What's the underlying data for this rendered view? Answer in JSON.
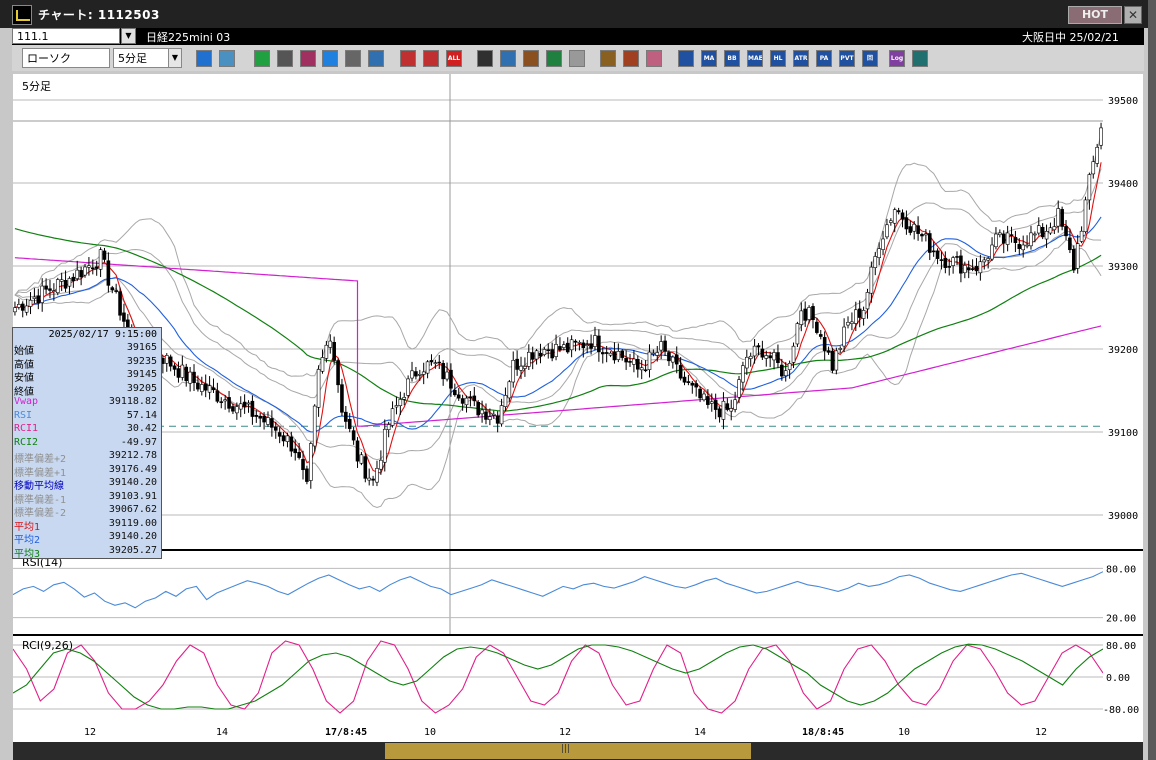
{
  "window": {
    "title": "チャート: 1112503",
    "hot_label": "HOT",
    "close_label": "✕"
  },
  "topbar": {
    "code": "111.1",
    "symbol": "日経225mini 03",
    "session_date": "大阪日中  25/02/21"
  },
  "toolbar": {
    "chart_type": "ローソク",
    "interval": "5分足",
    "icons": [
      "zoom-icon",
      "window-icon",
      "pen-icon",
      "line-icon",
      "cursor-icon",
      "arrow-icon",
      "page-icon",
      "trash-icon",
      "bar-left-icon",
      "bar-right-icon",
      "all-icon",
      "cross-icon",
      "search-icon",
      "dist-icon",
      "grid-icon",
      "blank-icon",
      "gear-icon",
      "tools-icon",
      "palette-icon",
      "ichimoku-icon",
      "ma-icon",
      "bb-icon",
      "mae-icon",
      "hl-icon",
      "atr-icon",
      "para-icon",
      "pvt-icon",
      "box-icon",
      "log-icon",
      "fit-icon"
    ],
    "icon_labels": {
      "all-icon": "ALL",
      "ma-icon": "MA",
      "bb-icon": "BB",
      "mae-icon": "MAE",
      "hl-icon": "HL",
      "atr-icon": "ATR",
      "para-icon": "PA",
      "pvt-icon": "PVT",
      "box-icon": "回",
      "log-icon": "Log"
    }
  },
  "colors": {
    "vwap": "#d020d0",
    "ma1": "#e01010",
    "ma2": "#2060e0",
    "ma3": "#108010",
    "band": "#a8a8a8",
    "rsi": "#4a8ad8",
    "rci1": "#e0208a",
    "rci2": "#108010",
    "info_bg": "#c8d8f0",
    "up": "#ffffff",
    "down": "#000000"
  },
  "main_panel": {
    "label": "5分足"
  },
  "rsi_panel": {
    "label": "RSI(14)"
  },
  "rci_panel": {
    "label": "RCI(9,26)"
  },
  "info": {
    "datetime": "2025/02/17 9:15:00",
    "rows": [
      {
        "label": "始値",
        "value": "39165",
        "color": "#000000"
      },
      {
        "label": "高値",
        "value": "39235",
        "color": "#000000"
      },
      {
        "label": "安値",
        "value": "39145",
        "color": "#000000"
      },
      {
        "label": "終値",
        "value": "39205",
        "color": "#000000"
      },
      {
        "label": "Vwap",
        "value": "39118.82",
        "color": "#d020d0"
      },
      {
        "label": "RSI",
        "value": "57.14",
        "color": "#4a8ad8"
      },
      {
        "label": "RCI1",
        "value": "30.42",
        "color": "#e0208a"
      },
      {
        "label": "RCI2",
        "value": "-49.97",
        "color": "#108010"
      },
      {
        "label": "標準偏差+2",
        "value": "39212.78",
        "color": "#909090"
      },
      {
        "label": "標準偏差+1",
        "value": "39176.49",
        "color": "#909090"
      },
      {
        "label": "移動平均線",
        "value": "39140.20",
        "color": "#0000c0"
      },
      {
        "label": "標準偏差-1",
        "value": "39103.91",
        "color": "#909090"
      },
      {
        "label": "標準偏差-2",
        "value": "39067.62",
        "color": "#909090"
      },
      {
        "label": "平均1",
        "value": "39119.00",
        "color": "#e01010"
      },
      {
        "label": "平均2",
        "value": "39140.20",
        "color": "#2060e0"
      },
      {
        "label": "平均3",
        "value": "39205.27",
        "color": "#108010"
      }
    ]
  },
  "chart_data": {
    "type": "candlestick",
    "interval": "5分足",
    "price_ticks": [
      "39500",
      "39400",
      "39300",
      "39200",
      "39100",
      "39000"
    ],
    "price_range": [
      38970,
      39510
    ],
    "hline_dashed": 39107,
    "rsi_ticks": [
      "80.00",
      "20.00"
    ],
    "rsi_range": [
      0,
      100
    ],
    "rci_ticks": [
      "80.00",
      "0.00",
      "-80.00"
    ],
    "rci_range": [
      -100,
      100
    ],
    "x_labels": [
      "12",
      "14",
      "17/8:45",
      "10",
      "12",
      "14",
      "18/8:45",
      "10",
      "12"
    ],
    "price_anchors": [
      [
        0,
        39250
      ],
      [
        8,
        39270
      ],
      [
        14,
        39285
      ],
      [
        22,
        39310
      ],
      [
        30,
        39210
      ],
      [
        38,
        39190
      ],
      [
        46,
        39160
      ],
      [
        54,
        39140
      ],
      [
        62,
        39120
      ],
      [
        68,
        39100
      ],
      [
        72,
        39080
      ],
      [
        75,
        39030
      ],
      [
        78,
        39170
      ],
      [
        81,
        39220
      ],
      [
        84,
        39130
      ],
      [
        88,
        39070
      ],
      [
        92,
        39040
      ],
      [
        96,
        39110
      ],
      [
        100,
        39150
      ],
      [
        104,
        39180
      ],
      [
        108,
        39180
      ],
      [
        112,
        39160
      ],
      [
        118,
        39130
      ],
      [
        124,
        39120
      ],
      [
        128,
        39180
      ],
      [
        134,
        39200
      ],
      [
        142,
        39200
      ],
      [
        148,
        39210
      ],
      [
        155,
        39195
      ],
      [
        160,
        39175
      ],
      [
        166,
        39200
      ],
      [
        172,
        39160
      ],
      [
        178,
        39130
      ],
      [
        184,
        39125
      ],
      [
        188,
        39190
      ],
      [
        192,
        39200
      ],
      [
        198,
        39170
      ],
      [
        202,
        39250
      ],
      [
        206,
        39230
      ],
      [
        210,
        39180
      ],
      [
        214,
        39230
      ],
      [
        218,
        39250
      ],
      [
        222,
        39330
      ],
      [
        226,
        39370
      ],
      [
        232,
        39340
      ],
      [
        238,
        39310
      ],
      [
        244,
        39300
      ],
      [
        248,
        39300
      ],
      [
        252,
        39330
      ],
      [
        258,
        39330
      ],
      [
        264,
        39340
      ],
      [
        268,
        39360
      ],
      [
        272,
        39300
      ],
      [
        276,
        39400
      ],
      [
        279,
        39470
      ]
    ],
    "rsi_values": [
      48,
      55,
      58,
      52,
      60,
      63,
      55,
      45,
      50,
      40,
      35,
      38,
      32,
      40,
      44,
      52,
      46,
      55,
      58,
      42,
      50,
      55,
      60,
      65,
      62,
      58,
      52,
      48,
      55,
      62,
      68,
      72,
      66,
      60,
      55,
      58,
      52,
      60,
      66,
      70,
      64,
      58,
      55,
      48,
      52,
      56,
      60,
      66,
      62,
      58,
      54,
      50,
      46,
      52,
      58,
      55,
      60,
      62,
      58,
      56,
      60,
      64,
      70,
      66,
      62,
      58,
      56,
      60,
      65,
      68,
      62,
      58,
      54,
      50,
      52,
      56,
      60,
      64,
      60,
      58,
      55,
      52,
      56,
      62,
      58,
      60,
      64,
      70,
      72,
      68,
      62,
      58,
      54,
      52,
      56,
      60,
      64,
      68,
      72,
      74,
      70,
      66,
      62,
      58,
      62,
      66,
      70,
      76
    ],
    "rci1_values": [
      70,
      20,
      -60,
      -30,
      60,
      80,
      40,
      -40,
      -80,
      -80,
      -60,
      -20,
      40,
      80,
      60,
      -20,
      -70,
      -80,
      -40,
      60,
      90,
      80,
      20,
      -60,
      -90,
      -60,
      40,
      90,
      80,
      20,
      -60,
      -90,
      -70,
      -30,
      50,
      80,
      60,
      0,
      -60,
      -70,
      -40,
      40,
      80,
      60,
      -20,
      -70,
      -60,
      20,
      80,
      60,
      -40,
      -80,
      -90,
      -60,
      20,
      70,
      80,
      40,
      -40,
      -80,
      -60,
      20,
      70,
      80,
      40,
      -20,
      -60,
      -70,
      -30,
      40,
      80,
      70,
      20,
      -40,
      -70,
      -60,
      0,
      60,
      80,
      60,
      10
    ],
    "rci2_values": [
      -40,
      -20,
      20,
      60,
      70,
      60,
      40,
      10,
      -20,
      -50,
      -70,
      -80,
      -80,
      -75,
      -75,
      -80,
      -80,
      -70,
      -60,
      -40,
      -20,
      10,
      40,
      55,
      60,
      50,
      30,
      10,
      -10,
      -20,
      -10,
      20,
      50,
      70,
      75,
      70,
      60,
      45,
      30,
      20,
      30,
      50,
      70,
      80,
      80,
      75,
      65,
      50,
      35,
      20,
      10,
      20,
      40,
      60,
      75,
      80,
      70,
      50,
      30,
      10,
      -20,
      -40,
      -60,
      -70,
      -60,
      -40,
      -10,
      20,
      40,
      60,
      75,
      82,
      80,
      70,
      55,
      40,
      20,
      0,
      -20,
      20,
      50,
      70
    ]
  }
}
